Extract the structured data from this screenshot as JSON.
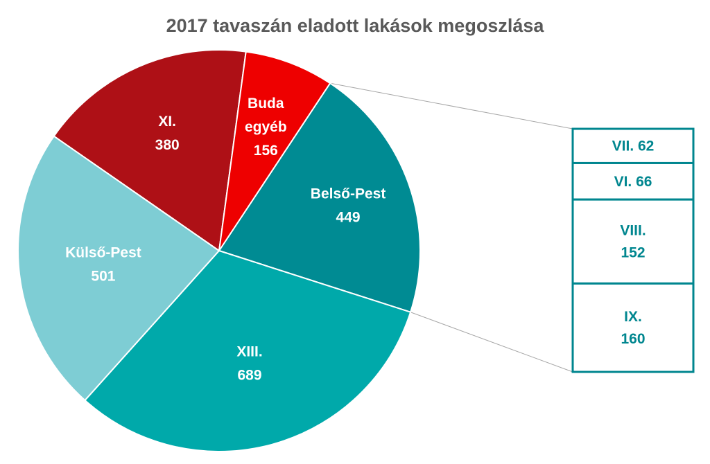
{
  "chart_data": {
    "type": "bar-of-pie",
    "title": "2017 tavaszán eladott lakások megoszlása",
    "pie": [
      {
        "name": "Belső-Pest",
        "value": 449,
        "color": "#008B93",
        "label_lines": [
          "Belső-Pest",
          "449"
        ]
      },
      {
        "name": "XIII.",
        "value": 689,
        "color": "#00A9AA",
        "label_lines": [
          "XIII.",
          "689"
        ]
      },
      {
        "name": "Külső-Pest",
        "value": 501,
        "color": "#7ECDD4",
        "label_lines": [
          "Külső-Pest",
          "501"
        ]
      },
      {
        "name": "XI.",
        "value": 380,
        "color": "#AE1016",
        "label_lines": [
          "XI.",
          "380"
        ]
      },
      {
        "name": "Buda egyéb",
        "value": 156,
        "color": "#EE0000",
        "label_lines": [
          "Buda",
          "egyéb",
          "156"
        ]
      }
    ],
    "breakout": {
      "parent": "Belső-Pest",
      "color": "#00868F",
      "items": [
        {
          "name": "VII.",
          "value": 62,
          "label_lines": [
            "VII. 62"
          ]
        },
        {
          "name": "VI.",
          "value": 66,
          "label_lines": [
            "VI. 66"
          ]
        },
        {
          "name": "VIII.",
          "value": 152,
          "label_lines": [
            "VIII.",
            "152"
          ]
        },
        {
          "name": "IX.",
          "value": 160,
          "label_lines": [
            "IX.",
            "160"
          ]
        }
      ]
    }
  }
}
